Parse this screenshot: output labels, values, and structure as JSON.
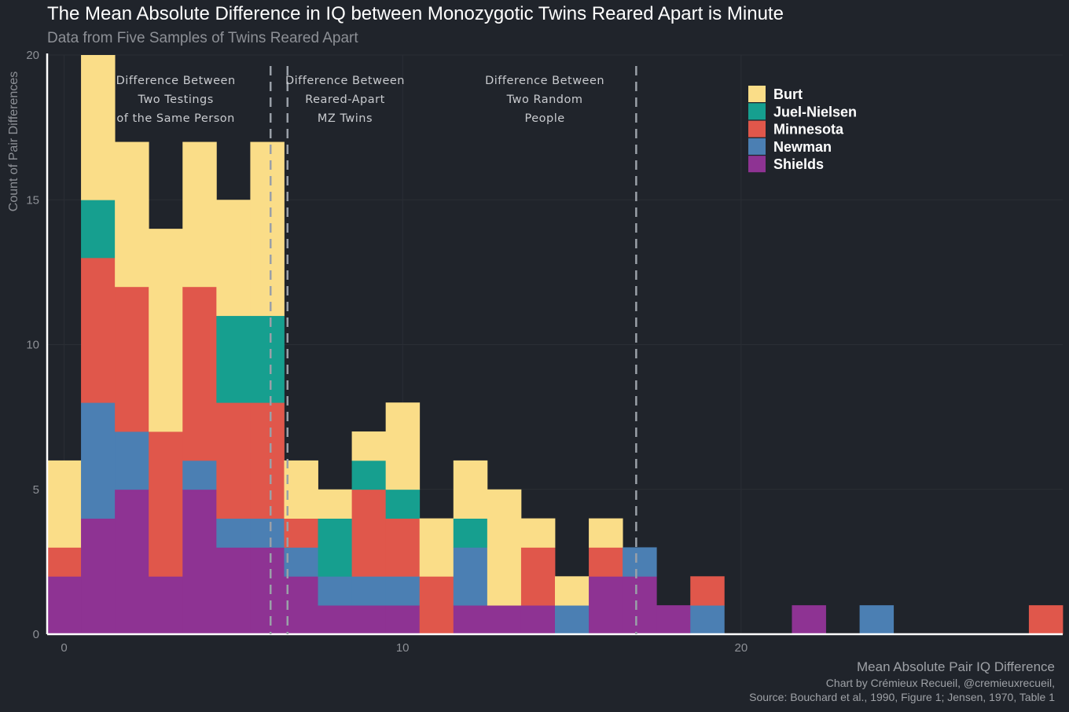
{
  "chart_data": {
    "type": "bar",
    "subtype": "stacked-histogram",
    "title": "The Mean Absolute Difference in IQ between Monozygotic Twins Reared Apart is Minute",
    "subtitle": "Data from Five Samples of Twins Reared Apart",
    "xlabel": "Mean Absolute Pair IQ Difference",
    "ylabel": "Count of Pair Differences",
    "credit": "Chart by Crémieux Recueil, @cremieuxrecueil,",
    "source": "Source: Bouchard et al., 1990, Figure 1; Jensen, 1970, Table 1",
    "xlim": [
      -0.5,
      29.5
    ],
    "ylim": [
      0,
      20
    ],
    "bin_width": 1,
    "x": [
      0,
      1,
      2,
      3,
      4,
      5,
      6,
      7,
      8,
      9,
      10,
      11,
      12,
      13,
      14,
      15,
      16,
      17,
      18,
      19,
      20,
      21,
      22,
      23,
      24,
      25,
      26,
      27,
      28,
      29
    ],
    "xticks": [
      0,
      10,
      20
    ],
    "yticks": [
      0,
      5,
      10,
      15,
      20
    ],
    "series": [
      {
        "name": "Shields",
        "color": "#8e3393",
        "values": [
          2,
          4,
          5,
          2,
          5,
          3,
          3,
          2,
          1,
          1,
          1,
          0,
          1,
          1,
          1,
          0,
          2,
          2,
          1,
          0,
          0,
          0,
          1,
          0,
          0,
          0,
          0,
          0,
          0,
          0
        ]
      },
      {
        "name": "Newman",
        "color": "#4b7fb3",
        "values": [
          0,
          4,
          2,
          0,
          1,
          1,
          1,
          1,
          1,
          1,
          1,
          0,
          2,
          0,
          0,
          1,
          0,
          1,
          0,
          1,
          0,
          0,
          0,
          0,
          1,
          0,
          0,
          0,
          0,
          0
        ]
      },
      {
        "name": "Minnesota",
        "color": "#e0574b",
        "values": [
          1,
          5,
          5,
          5,
          6,
          4,
          4,
          1,
          0,
          3,
          2,
          2,
          0,
          0,
          2,
          0,
          1,
          0,
          0,
          1,
          0,
          0,
          0,
          0,
          0,
          0,
          0,
          0,
          0,
          1
        ]
      },
      {
        "name": "Juel-Nielsen",
        "color": "#169f8f",
        "values": [
          0,
          2,
          0,
          0,
          0,
          3,
          3,
          0,
          2,
          1,
          1,
          0,
          1,
          0,
          0,
          0,
          0,
          0,
          0,
          0,
          0,
          0,
          0,
          0,
          0,
          0,
          0,
          0,
          0,
          0
        ]
      },
      {
        "name": "Burt",
        "color": "#fadd88",
        "values": [
          3,
          5,
          5,
          7,
          5,
          4,
          6,
          2,
          1,
          1,
          3,
          2,
          2,
          4,
          1,
          1,
          1,
          0,
          0,
          0,
          0,
          0,
          0,
          0,
          0,
          0,
          0,
          0,
          0,
          0
        ]
      }
    ],
    "vlines": [
      6.1,
      6.6,
      16.9
    ],
    "regions": [
      {
        "lines": [
          "Difference Between",
          "Two Testings",
          "of the Same Person"
        ],
        "center": 3.3
      },
      {
        "lines": [
          "Difference Between",
          "Reared-Apart",
          "MZ Twins"
        ],
        "center": 8.3
      },
      {
        "lines": [
          "Difference Between",
          "Two Random",
          "People"
        ],
        "center": 14.2
      }
    ],
    "legend": {
      "position": "top-right",
      "items": [
        {
          "label": "Burt",
          "color": "#fadd88"
        },
        {
          "label": "Juel-Nielsen",
          "color": "#169f8f"
        },
        {
          "label": "Minnesota",
          "color": "#e0574b"
        },
        {
          "label": "Newman",
          "color": "#4b7fb3"
        },
        {
          "label": "Shields",
          "color": "#8e3393"
        }
      ]
    }
  }
}
